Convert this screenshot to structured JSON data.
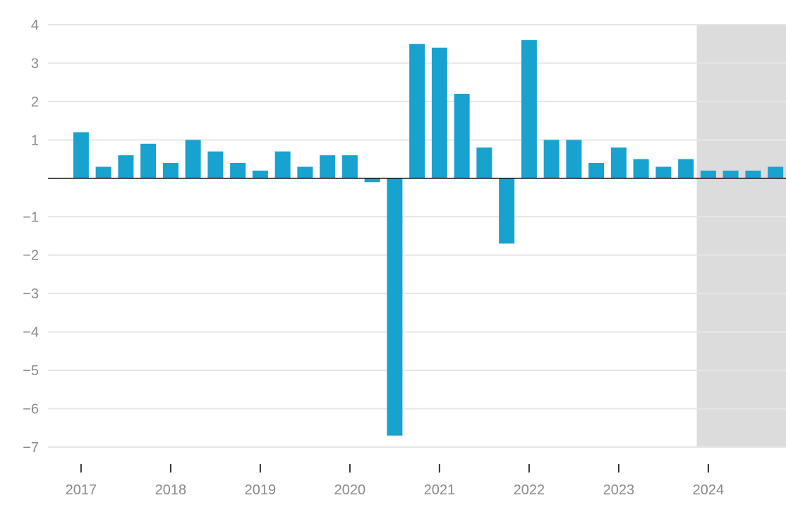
{
  "chart_data": {
    "type": "bar",
    "title": "",
    "xlabel": "",
    "ylabel": "",
    "ylim": [
      -7,
      4
    ],
    "y_ticks": [
      "4",
      "3",
      "2",
      "1",
      "−1",
      "−2",
      "−3",
      "−4",
      "−5",
      "−6",
      "−7"
    ],
    "y_tick_values": [
      4,
      3,
      2,
      1,
      -1,
      -2,
      -3,
      -4,
      -5,
      -6,
      -7
    ],
    "x_tick_labels": [
      "2017",
      "2018",
      "2019",
      "2020",
      "2021",
      "2022",
      "2023",
      "2024"
    ],
    "categories": [
      "2017 Q1",
      "2017 Q2",
      "2017 Q3",
      "2017 Q4",
      "2018 Q1",
      "2018 Q2",
      "2018 Q3",
      "2018 Q4",
      "2019 Q1",
      "2019 Q2",
      "2019 Q3",
      "2019 Q4",
      "2020 Q1",
      "2020 Q2",
      "2020 Q3",
      "2020 Q4",
      "2021 Q1",
      "2021 Q2",
      "2021 Q3",
      "2021 Q4",
      "2022 Q1",
      "2022 Q2",
      "2022 Q3",
      "2022 Q4",
      "2023 Q1",
      "2023 Q2",
      "2023 Q3",
      "2023 Q4",
      "2024 Q1",
      "2024 Q2",
      "2024 Q3",
      "2024 Q4"
    ],
    "values": [
      1.2,
      0.3,
      0.6,
      0.9,
      0.4,
      1.0,
      0.7,
      0.4,
      0.2,
      0.7,
      0.3,
      0.6,
      0.6,
      -0.1,
      -6.7,
      3.5,
      3.4,
      2.2,
      0.8,
      -1.7,
      3.6,
      1.0,
      1.0,
      0.4,
      0.8,
      0.5,
      0.3,
      0.5,
      0.2,
      0.2,
      0.2,
      0.3
    ],
    "shaded_region_start": "2024 Q1",
    "grid": true,
    "legend": "none",
    "colors": {
      "bar": "#18a2cf",
      "shade": "#dcdcdc",
      "grid": "#e6e6e6",
      "zero_line": "#1a1a1a",
      "tick_text": "#8a8a8a"
    }
  }
}
